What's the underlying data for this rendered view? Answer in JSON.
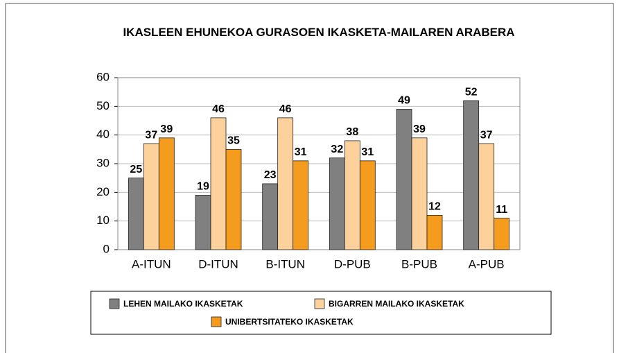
{
  "chart_data": {
    "type": "bar",
    "title": "IKASLEEN EHUNEKOA GURASOEN IKASKETA-MAILAREN ARABERA",
    "categories": [
      "A-ITUN",
      "D-ITUN",
      "B-ITUN",
      "D-PUB",
      "B-PUB",
      "A-PUB"
    ],
    "series": [
      {
        "name": "LEHEN MAILAKO IKASKETAK",
        "color": "#808080",
        "values": [
          25,
          19,
          23,
          32,
          49,
          52
        ]
      },
      {
        "name": "BIGARREN MAILAKO IKASKETAK",
        "color": "#fdd19c",
        "values": [
          37,
          46,
          46,
          38,
          39,
          37
        ]
      },
      {
        "name": "UNIBERTSITATEKO IKASKETAK",
        "color": "#f59b1d",
        "values": [
          39,
          35,
          31,
          31,
          12,
          11
        ]
      }
    ],
    "ylim": [
      0,
      60
    ],
    "yticks": [
      0,
      10,
      20,
      30,
      40,
      50,
      60
    ],
    "grid": true
  }
}
